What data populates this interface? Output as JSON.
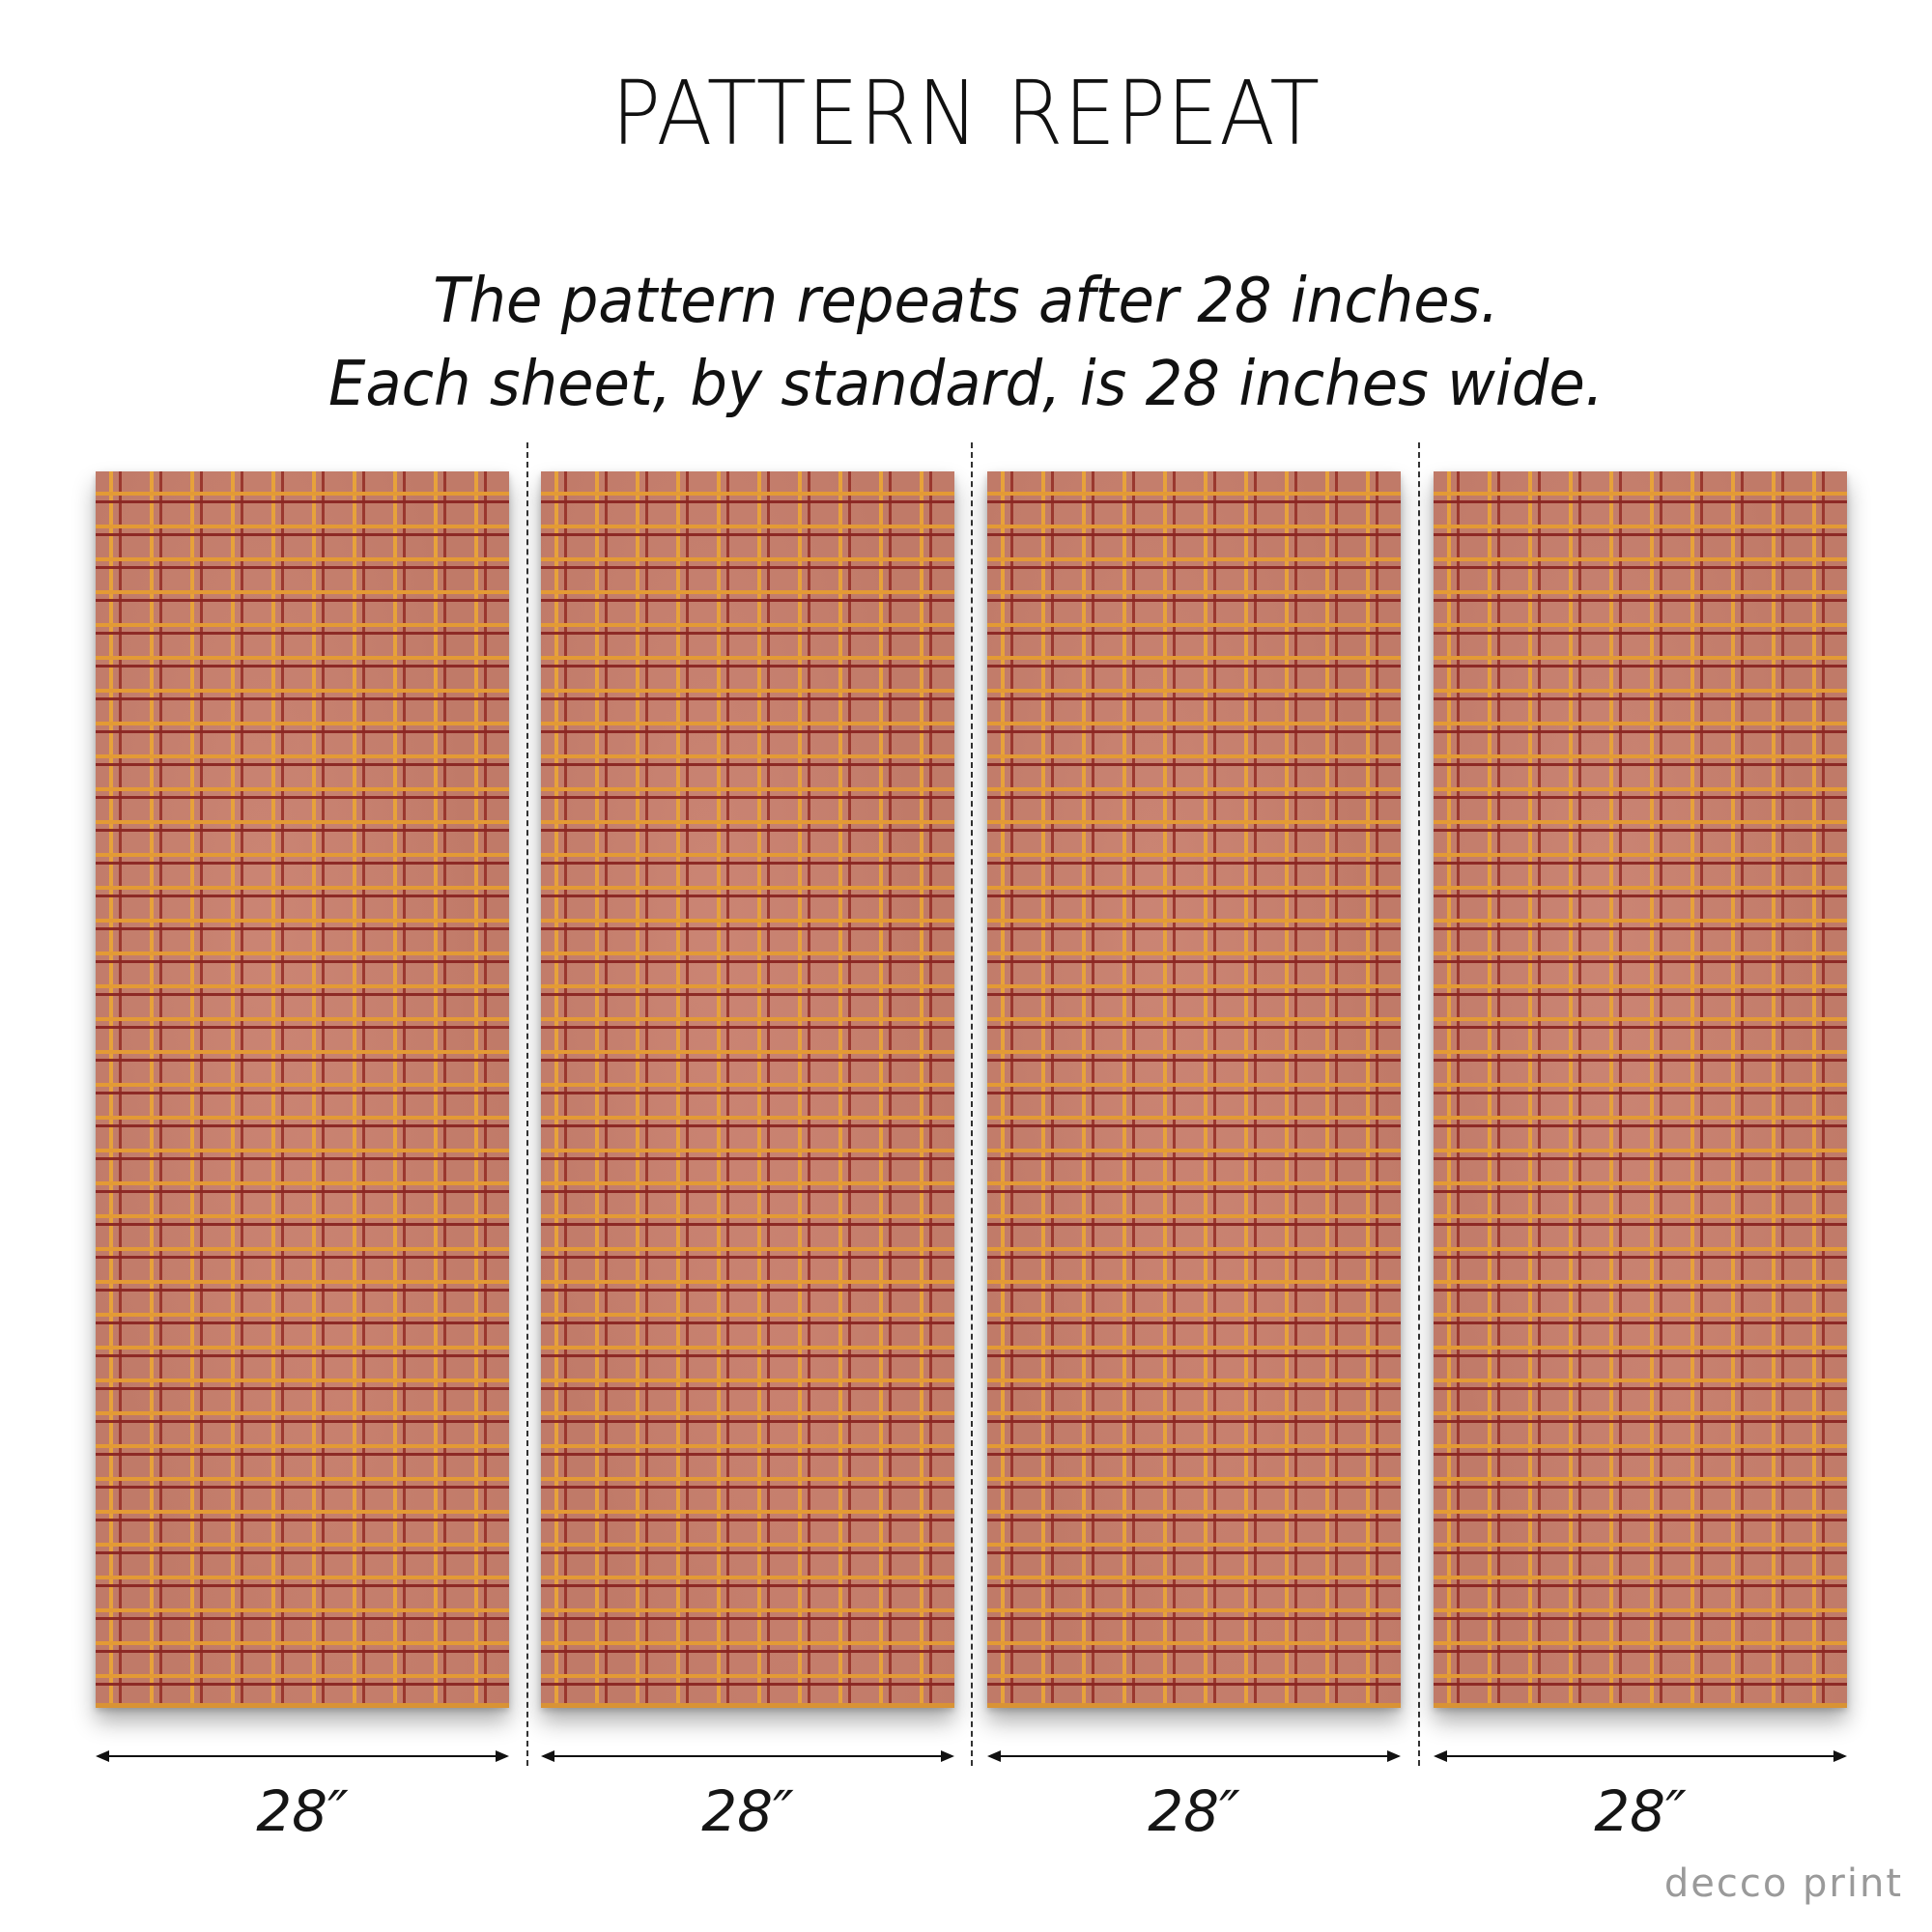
{
  "title": "PATTERN REPEAT",
  "subtitle": {
    "line1": "The pattern repeats after 28 inches.",
    "line2": "Each sheet, by standard, is 28 inches wide."
  },
  "sheets": [
    {
      "width_label": "28″"
    },
    {
      "width_label": "28″"
    },
    {
      "width_label": "28″"
    },
    {
      "width_label": "28″"
    }
  ],
  "brand": {
    "logo_text": "decco print"
  },
  "colors": {
    "sheet_base": "#c07a68",
    "grid_gold": "#e39a35",
    "grid_red": "#8a2622",
    "logo_gray": "#9a9a9a"
  }
}
